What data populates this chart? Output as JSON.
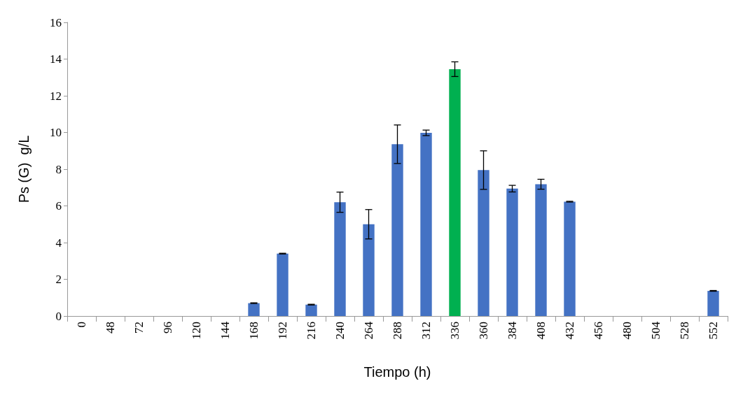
{
  "chart_data": {
    "type": "bar",
    "xlabel": "Tiempo (h)",
    "ylabel": "Ps (G)  g/L",
    "categories": [
      "0",
      "48",
      "72",
      "96",
      "120",
      "144",
      "168",
      "192",
      "216",
      "240",
      "264",
      "288",
      "312",
      "336",
      "360",
      "384",
      "408",
      "432",
      "456",
      "480",
      "504",
      "528",
      "552"
    ],
    "values": [
      0,
      0,
      0,
      0,
      0,
      0,
      0.7,
      3.4,
      0.62,
      6.2,
      5.0,
      9.36,
      9.98,
      13.45,
      7.95,
      6.94,
      7.18,
      6.23,
      0,
      0,
      0,
      0,
      1.37
    ],
    "errors": [
      null,
      null,
      null,
      null,
      null,
      null,
      0.02,
      0.02,
      0.02,
      0.55,
      0.8,
      1.05,
      0.15,
      0.4,
      1.05,
      0.18,
      0.27,
      0.02,
      null,
      null,
      null,
      null,
      0.02
    ],
    "colors": [
      "#4472c4",
      "#4472c4",
      "#4472c4",
      "#4472c4",
      "#4472c4",
      "#4472c4",
      "#4472c4",
      "#4472c4",
      "#4472c4",
      "#4472c4",
      "#4472c4",
      "#4472c4",
      "#4472c4",
      "#00b050",
      "#4472c4",
      "#4472c4",
      "#4472c4",
      "#4472c4",
      "#4472c4",
      "#4472c4",
      "#4472c4",
      "#4472c4",
      "#4472c4"
    ],
    "ylim": [
      0,
      16
    ],
    "yticks": [
      0,
      2,
      4,
      6,
      8,
      10,
      12,
      14,
      16
    ],
    "grid": false
  }
}
